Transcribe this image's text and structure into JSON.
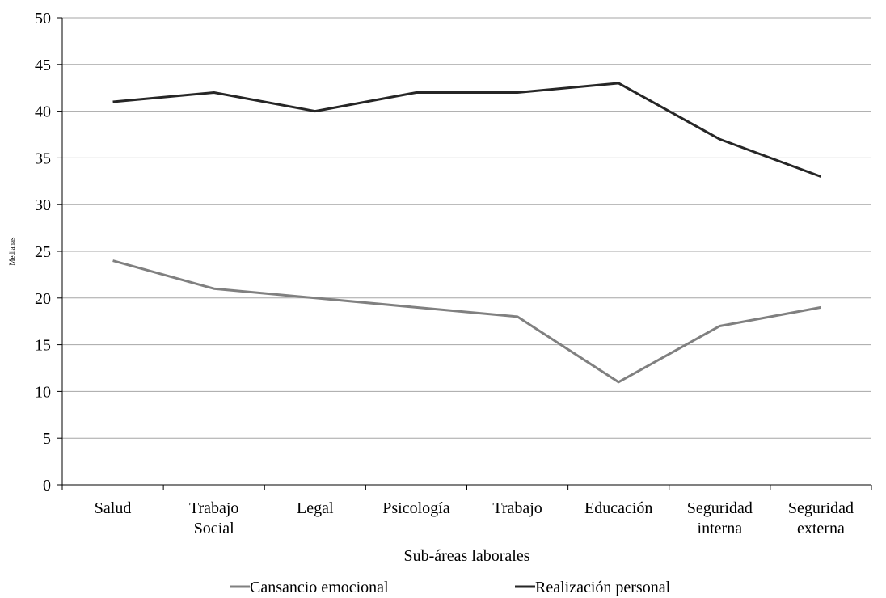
{
  "chart_data": {
    "type": "line",
    "title": "",
    "xlabel": "Sub-áreas laborales",
    "ylabel": "Medianas",
    "categories": [
      [
        "Salud"
      ],
      [
        "Trabajo",
        "Social"
      ],
      [
        "Legal"
      ],
      [
        "Psicología"
      ],
      [
        "Trabajo"
      ],
      [
        "Educación"
      ],
      [
        "Seguridad",
        "interna"
      ],
      [
        "Seguridad",
        "externa"
      ]
    ],
    "ylim": [
      0,
      50
    ],
    "yticks": [
      "0",
      "5",
      "10",
      "15",
      "20",
      "25",
      "30",
      "35",
      "40",
      "45",
      "50"
    ],
    "grid": true,
    "legend_position": "bottom",
    "series": [
      {
        "name": "Cansancio emocional",
        "color": "#808080",
        "values": [
          24,
          21,
          20,
          19,
          18,
          11,
          17,
          19
        ]
      },
      {
        "name": "Realización personal",
        "color": "#262626",
        "values": [
          41,
          42,
          40,
          42,
          42,
          43,
          37,
          33
        ]
      }
    ]
  }
}
